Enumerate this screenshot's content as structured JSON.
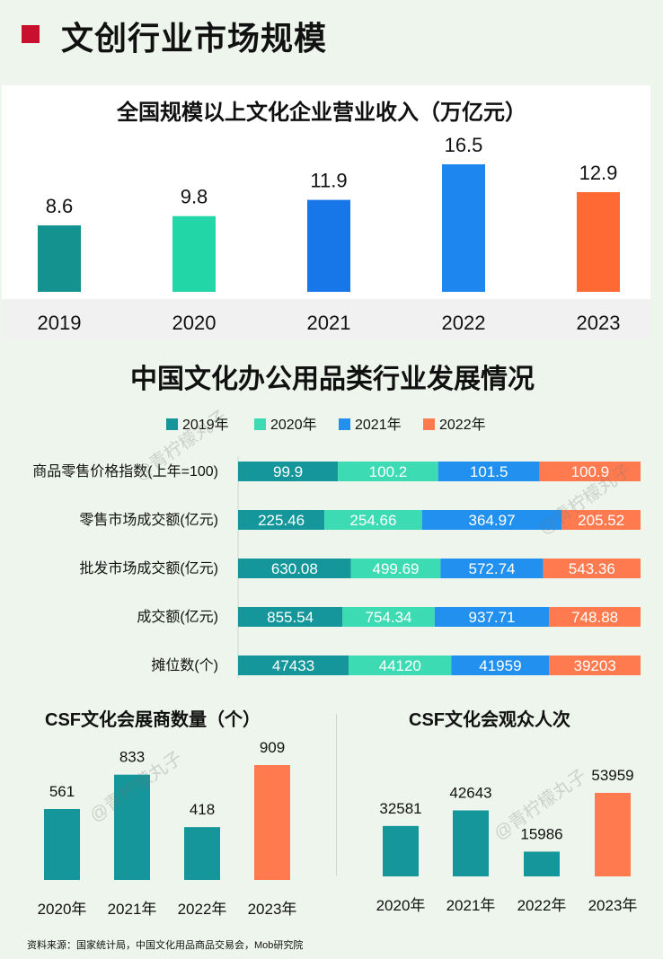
{
  "header": {
    "title": "文创行业市场规模"
  },
  "footer": {
    "source": "资料来源：国家统计局，中国文化用品商品交易会，Mob研究院"
  },
  "watermark": "@青柠檬丸子",
  "colors": {
    "accent_red": "#c8102e",
    "teal_dark": "#149a9a",
    "teal_light": "#3dd8b0",
    "blue": "#1e88e5",
    "orange": "#ff7043"
  },
  "chart_data": [
    {
      "type": "bar",
      "title": "全国规模以上文化企业营业收入（万亿元）",
      "categories": [
        "2019",
        "2020",
        "2021",
        "2022",
        "2023"
      ],
      "values": [
        8.6,
        9.8,
        11.9,
        16.5,
        12.9
      ],
      "value_labels": [
        "8.6",
        "9.8",
        "11.9",
        "16.5",
        "12.9"
      ],
      "bar_colors": [
        "#14928f",
        "#22d6a7",
        "#1877e8",
        "#1e86ef",
        "#ff6a34"
      ],
      "ylim": [
        0,
        18
      ],
      "grid": false
    },
    {
      "type": "bar",
      "orientation": "horizontal-stacked",
      "title": "中国文化办公用品类行业发展情况",
      "legend_position": "top",
      "categories": [
        "商品零售价格指数(上年=100)",
        "零售市场成交额(亿元)",
        "批发市场成交额(亿元)",
        "成交额(亿元)",
        "摊位数(个)"
      ],
      "series": [
        {
          "name": "2019年",
          "color": "#14969a",
          "values": [
            99.9,
            225.46,
            630.08,
            855.54,
            47433
          ],
          "labels": [
            "99.9",
            "225.46",
            "630.08",
            "855.54",
            "47433"
          ]
        },
        {
          "name": "2020年",
          "color": "#3ddbb3",
          "values": [
            100.2,
            254.66,
            499.69,
            754.34,
            44120
          ],
          "labels": [
            "100.2",
            "254.66",
            "499.69",
            "754.34",
            "44120"
          ]
        },
        {
          "name": "2021年",
          "color": "#2290ee",
          "values": [
            101.5,
            364.97,
            572.74,
            937.71,
            41959
          ],
          "labels": [
            "101.5",
            "364.97",
            "572.74",
            "937.71",
            "41959"
          ]
        },
        {
          "name": "2022年",
          "color": "#ff7a4f",
          "values": [
            100.9,
            205.52,
            543.36,
            748.88,
            39203
          ],
          "labels": [
            "100.9",
            "205.52",
            "543.36",
            "748.88",
            "39203"
          ]
        }
      ]
    },
    {
      "type": "bar",
      "title": "CSF文化会展商数量（个）",
      "categories": [
        "2020年",
        "2021年",
        "2022年",
        "2023年"
      ],
      "values": [
        561,
        833,
        418,
        909
      ],
      "value_labels": [
        "561",
        "833",
        "418",
        "909"
      ],
      "bar_colors": [
        "#14969a",
        "#14969a",
        "#14969a",
        "#ff7a4f"
      ],
      "ylim": [
        0,
        1000
      ]
    },
    {
      "type": "bar",
      "title": "CSF文化会观众人次",
      "categories": [
        "2020年",
        "2021年",
        "2022年",
        "2023年"
      ],
      "values": [
        32581,
        42643,
        15986,
        53959
      ],
      "value_labels": [
        "32581",
        "42643",
        "15986",
        "53959"
      ],
      "bar_colors": [
        "#14969a",
        "#14969a",
        "#14969a",
        "#ff7a4f"
      ],
      "ylim": [
        0,
        60000
      ]
    }
  ]
}
